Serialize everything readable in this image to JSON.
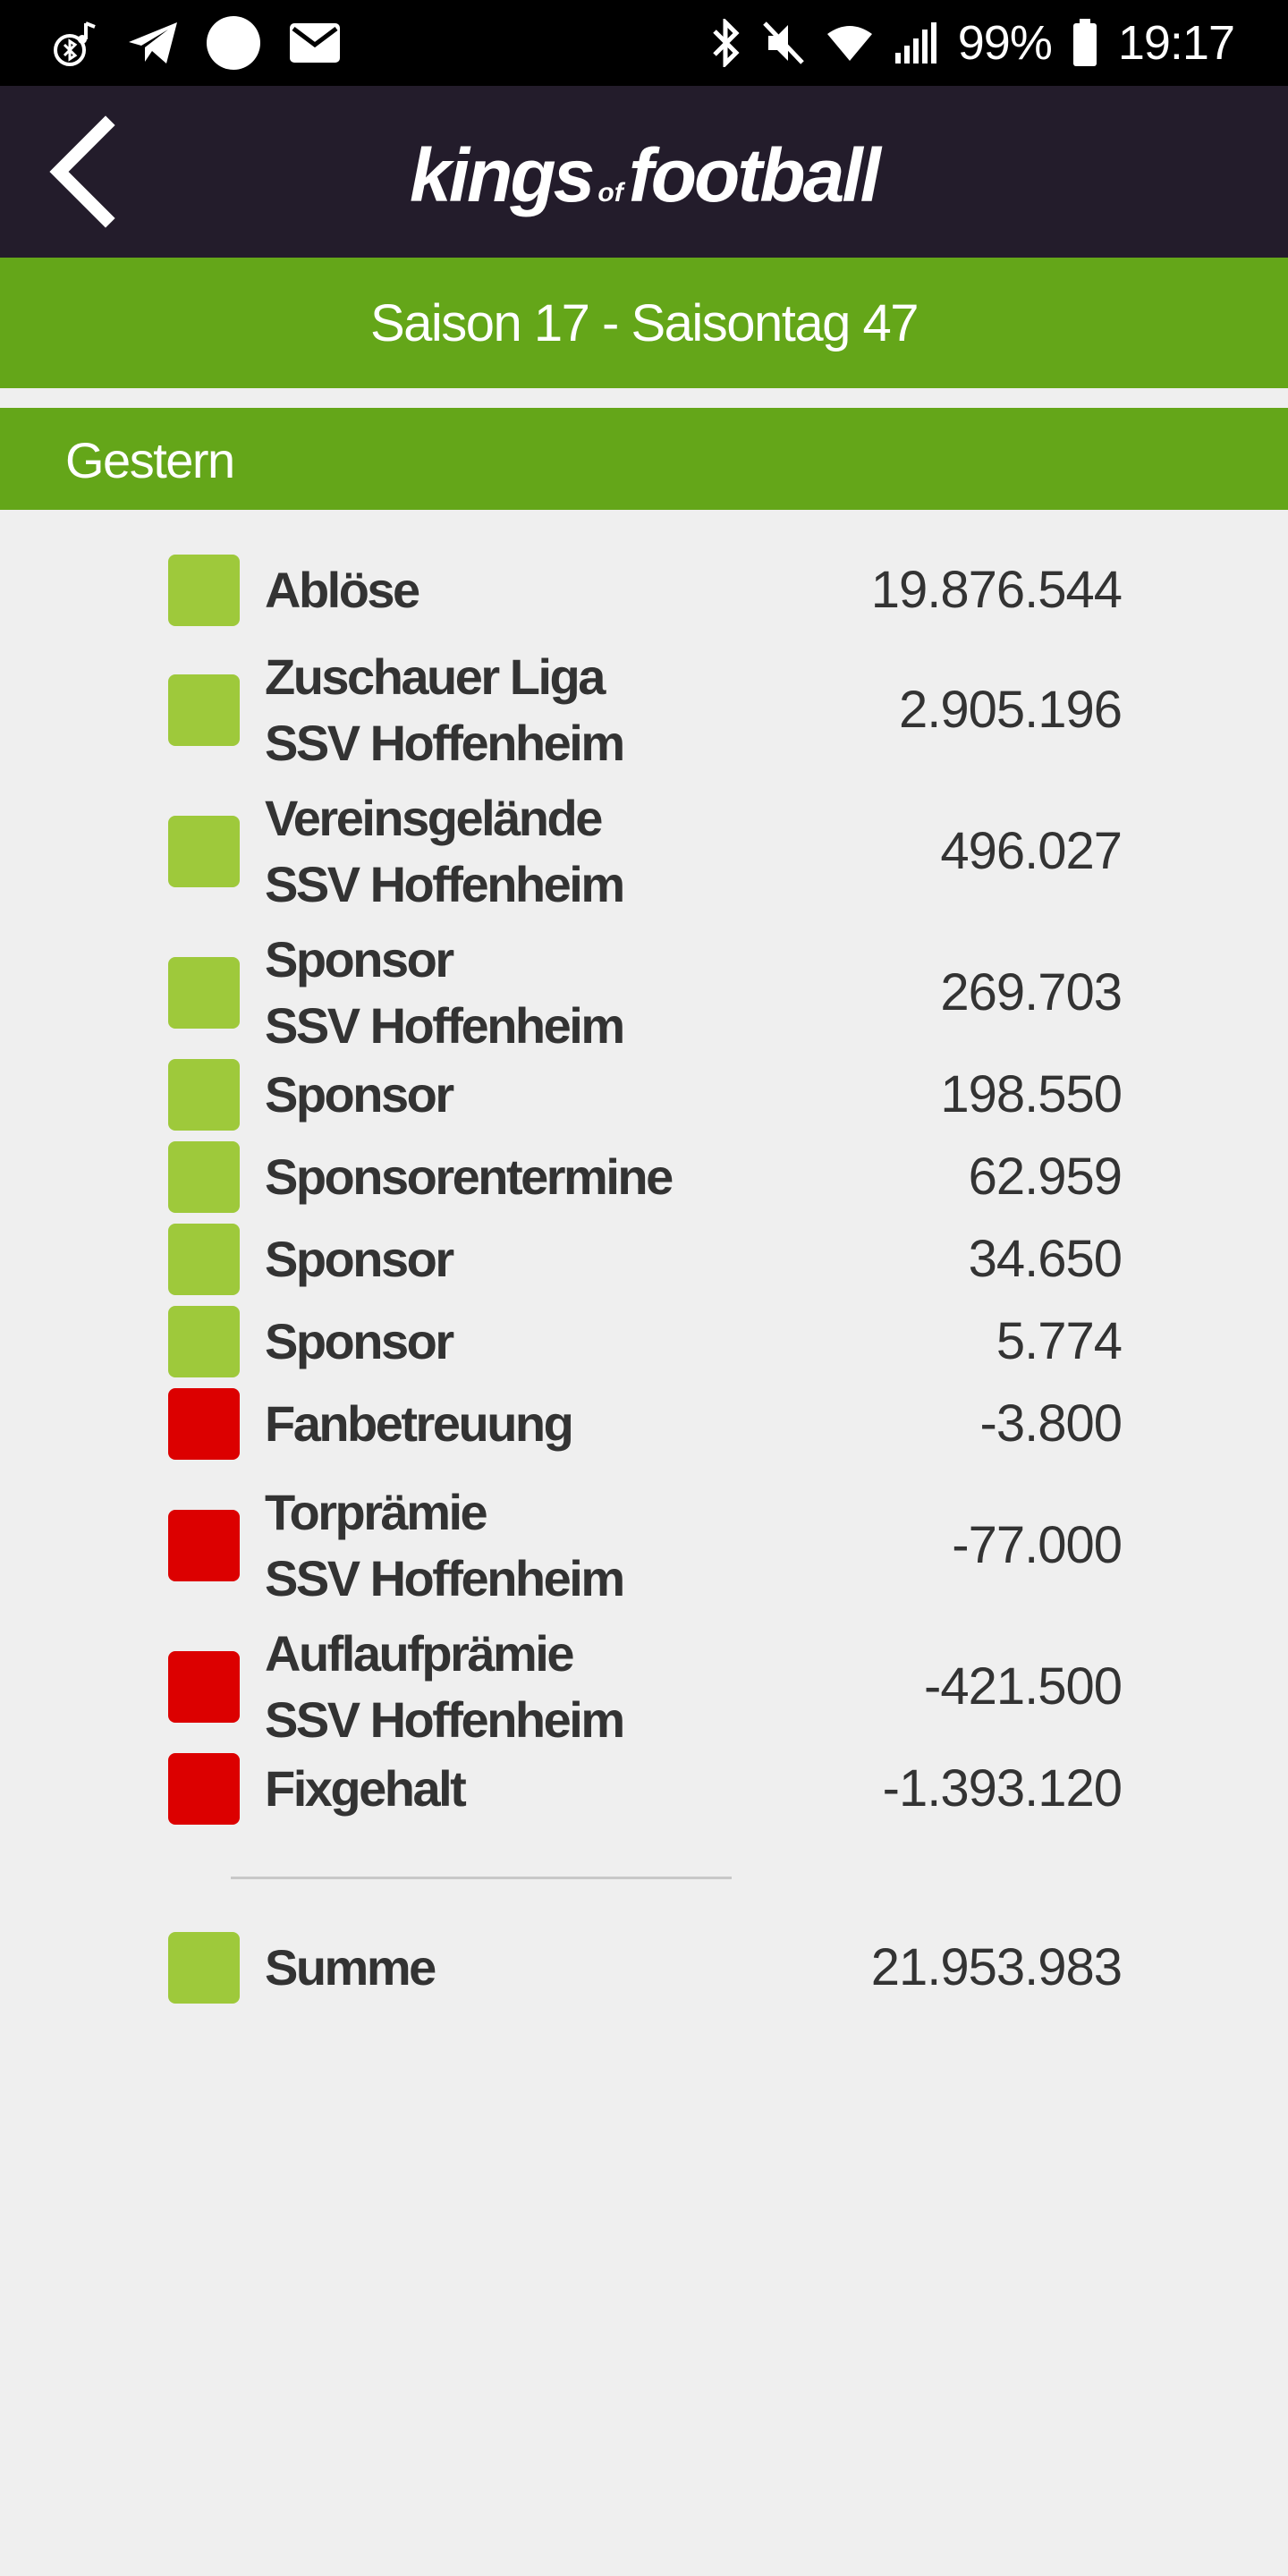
{
  "status_bar": {
    "battery": "99%",
    "time": "19:17",
    "left_icons": [
      "bluetooth-music-icon",
      "telegram-icon",
      "circle-icon",
      "mail-icon"
    ],
    "right_icons": [
      "bluetooth-icon",
      "mute-icon",
      "wifi-icon",
      "signal-icon",
      "battery-icon"
    ]
  },
  "header": {
    "logo_word1": "kings",
    "logo_small": "of",
    "logo_word2": "football"
  },
  "season_bar": {
    "text": "Saison 17 - Saisontag 47"
  },
  "section": {
    "title": "Gestern"
  },
  "rows": [
    {
      "color": "green",
      "line1": "Ablöse",
      "line2": "",
      "value": "19.876.544"
    },
    {
      "color": "green",
      "line1": "Zuschauer Liga",
      "line2": "SSV Hoffenheim",
      "value": "2.905.196"
    },
    {
      "color": "green",
      "line1": "Vereinsgelände",
      "line2": "SSV Hoffenheim",
      "value": "496.027"
    },
    {
      "color": "green",
      "line1": "Sponsor",
      "line2": "SSV Hoffenheim",
      "value": "269.703"
    },
    {
      "color": "green",
      "line1": "Sponsor",
      "line2": "",
      "value": "198.550"
    },
    {
      "color": "green",
      "line1": "Sponsorentermine",
      "line2": "",
      "value": "62.959"
    },
    {
      "color": "green",
      "line1": "Sponsor",
      "line2": "",
      "value": "34.650"
    },
    {
      "color": "green",
      "line1": "Sponsor",
      "line2": "",
      "value": "5.774"
    },
    {
      "color": "red",
      "line1": "Fanbetreuung",
      "line2": "",
      "value": "-3.800"
    },
    {
      "color": "red",
      "line1": "Torprämie",
      "line2": "SSV Hoffenheim",
      "value": "-77.000"
    },
    {
      "color": "red",
      "line1": "Auflaufprämie",
      "line2": "SSV Hoffenheim",
      "value": "-421.500"
    },
    {
      "color": "red",
      "line1": "Fixgehalt",
      "line2": "",
      "value": "-1.393.120"
    }
  ],
  "total": {
    "color": "green",
    "label": "Summe",
    "value": "21.953.983"
  },
  "colors": {
    "positive": "#9ec93b",
    "negative": "#dc0000",
    "accent": "#64a619",
    "header_bg": "#231c2b"
  }
}
